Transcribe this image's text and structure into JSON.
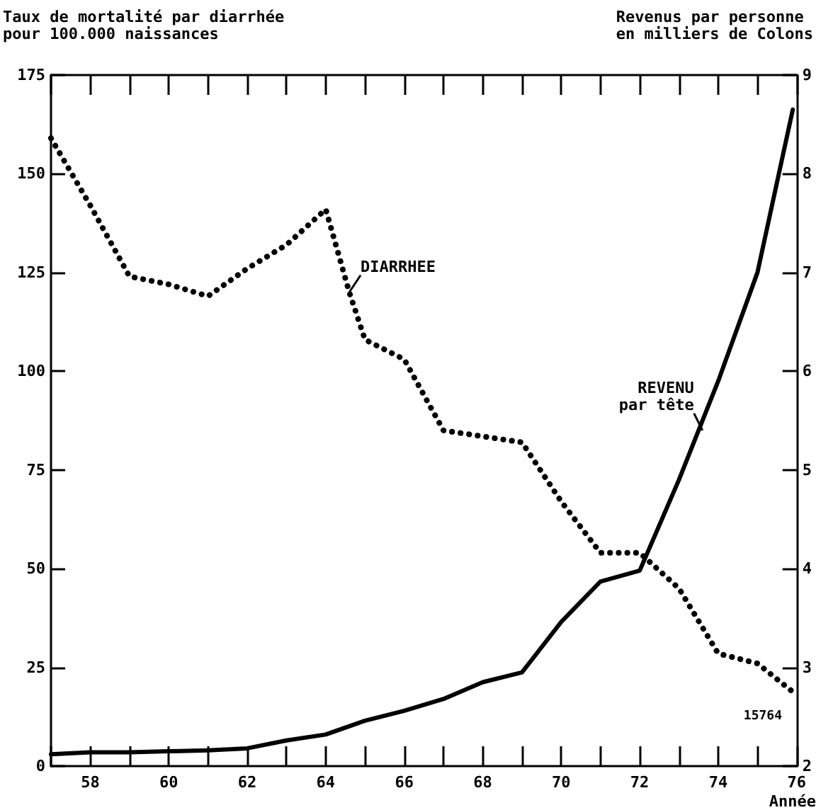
{
  "chart_data": {
    "type": "line",
    "ylabel": "Taux de mortalité par diarrhée\npour 100.000 naissances",
    "y2label": "Revenus par personne\nen milliers de Colons",
    "xlabel": "Année",
    "x": [
      57,
      58,
      59,
      60,
      61,
      62,
      63,
      64,
      64.6,
      65,
      66,
      67,
      68,
      69,
      70,
      71,
      72,
      73,
      74,
      75,
      76
    ],
    "series": [
      {
        "color": "#000000",
        "line_style": "dotted",
        "values": [
          159,
          142,
          124,
          122,
          119,
          126,
          132,
          141,
          120,
          108,
          103,
          85,
          83.5,
          82,
          67,
          54,
          54,
          45,
          28.5,
          26,
          18
        ]
      },
      {
        "color": "#000000",
        "line_style": "solid",
        "axis": "y2",
        "x": [
          57,
          58,
          59,
          60,
          61,
          62,
          63,
          64,
          65,
          66,
          67,
          68,
          69,
          70,
          71,
          72,
          73,
          74,
          75,
          75.9
        ],
        "values": [
          2.12,
          2.14,
          2.14,
          2.15,
          2.16,
          2.18,
          2.26,
          2.32,
          2.46,
          2.56,
          2.68,
          2.85,
          2.95,
          3.46,
          3.87,
          3.98,
          4.9,
          5.9,
          7.0,
          8.65
        ]
      }
    ],
    "xlim": [
      57,
      76
    ],
    "xticks": [
      {
        "value": 57,
        "label": null
      },
      58,
      {
        "value": 59,
        "label": null
      },
      60,
      {
        "value": 61,
        "label": null
      },
      62,
      {
        "value": 63,
        "label": null
      },
      64,
      {
        "value": 65,
        "label": null
      },
      66,
      {
        "value": 67,
        "label": null
      },
      68,
      {
        "value": 69,
        "label": null
      },
      70,
      {
        "value": 71,
        "label": null
      },
      72,
      {
        "value": 73,
        "label": null
      },
      74,
      {
        "value": 75,
        "label": null
      },
      76
    ],
    "ylim": [
      0,
      175
    ],
    "yticks": [
      0,
      25,
      50,
      75,
      100,
      125,
      150,
      175
    ],
    "y2lim": [
      2,
      9
    ],
    "y2ticks": [
      2,
      3,
      4,
      5,
      6,
      7,
      8,
      9
    ],
    "marker": "none",
    "grid": false,
    "annotations": [
      {
        "text": "DIARRHEE",
        "x": 64.6,
        "y": 120
      },
      {
        "text": "REVENU\npar tête",
        "x": 73.6,
        "y": 85
      },
      "15764"
    ]
  }
}
